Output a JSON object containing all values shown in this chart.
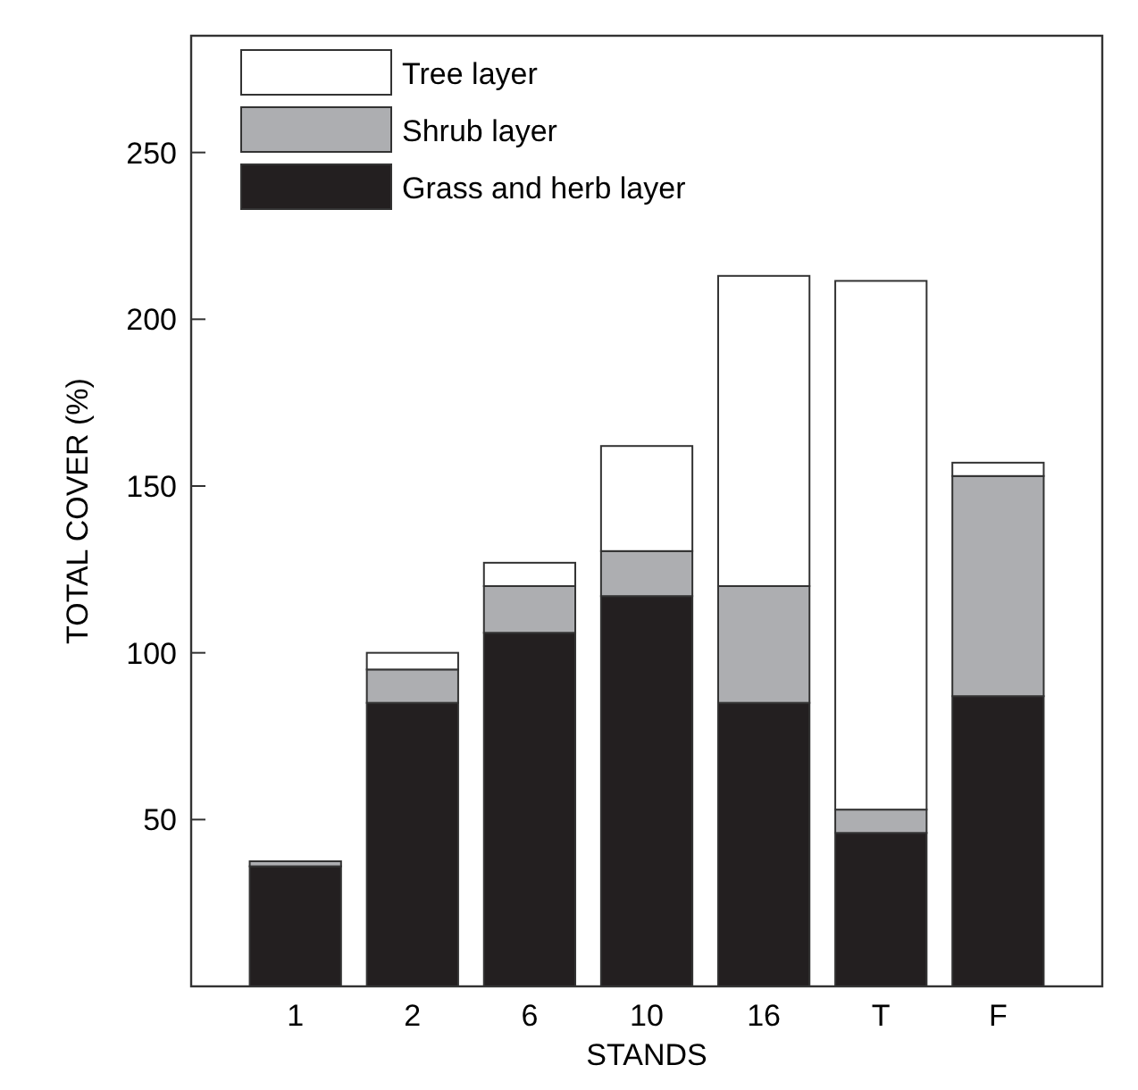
{
  "chart_data": {
    "type": "bar",
    "stacked": true,
    "xlabel": "STANDS",
    "ylabel": "TOTAL COVER (%)",
    "categories": [
      "1",
      "2",
      "6",
      "10",
      "16",
      "T",
      "F"
    ],
    "series": [
      {
        "name": "Grass and herb layer",
        "color": "#231f20",
        "values": [
          36,
          85,
          106,
          117,
          85,
          46,
          87
        ]
      },
      {
        "name": "Shrub layer",
        "color": "#adaeb1",
        "values": [
          1.5,
          10,
          14,
          13.5,
          35,
          7,
          66
        ]
      },
      {
        "name": "Tree layer",
        "color": "#ffffff",
        "values": [
          0,
          5,
          7,
          31.5,
          93,
          158.5,
          4
        ]
      }
    ],
    "ylim": [
      0,
      285
    ],
    "yticks": [
      50,
      100,
      150,
      200,
      250
    ],
    "legend": "top left"
  }
}
